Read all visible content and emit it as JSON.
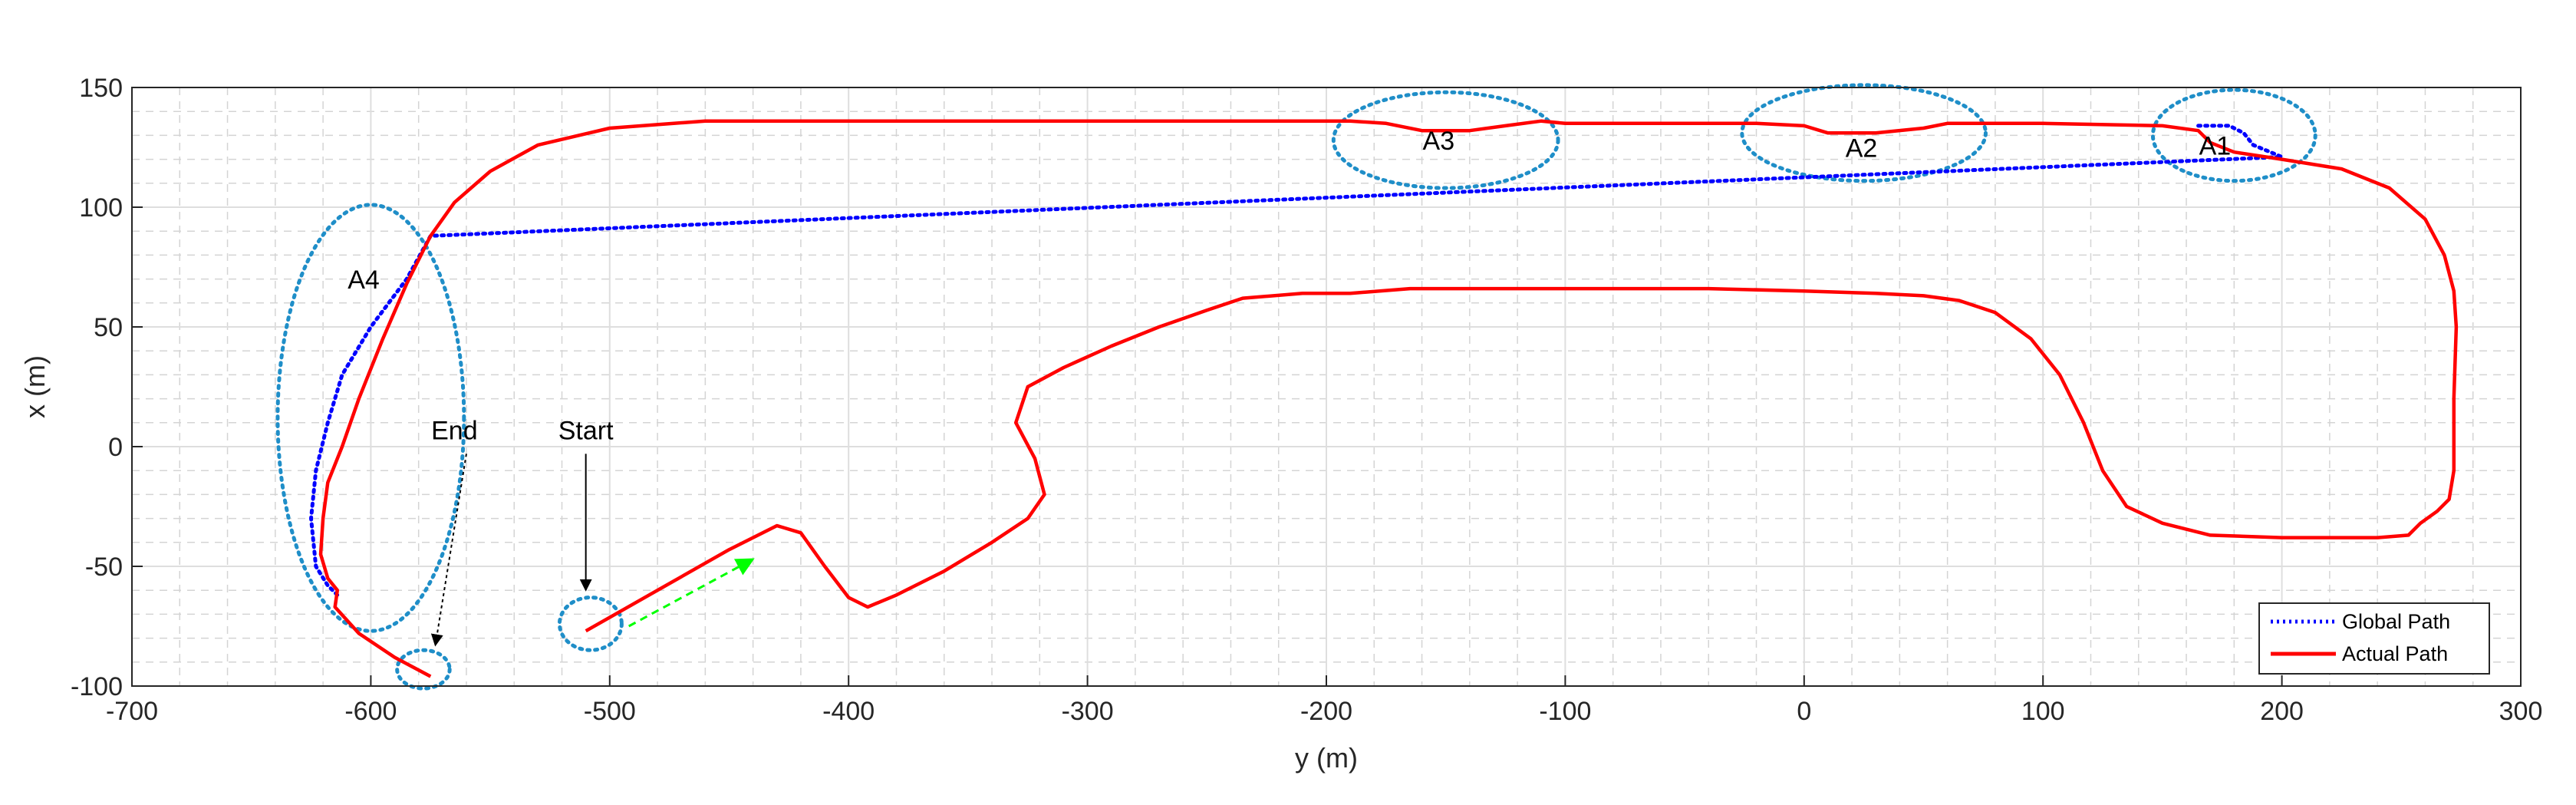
{
  "chart_data": {
    "type": "line",
    "title": "",
    "xlabel": "y (m)",
    "ylabel": "x (m)",
    "xlim": [
      -700,
      300
    ],
    "ylim": [
      -100,
      150
    ],
    "xticks": [
      -700,
      -600,
      -500,
      -400,
      -300,
      -200,
      -100,
      0,
      100,
      200,
      300
    ],
    "yticks": [
      -100,
      -50,
      0,
      50,
      100,
      150
    ],
    "xtick_labels": [
      "-700",
      "-600",
      "-500",
      "-400",
      "-300",
      "-200",
      "-100",
      "0",
      "100",
      "200",
      "300"
    ],
    "ytick_labels": [
      "-100",
      "-50",
      "0",
      "50",
      "100",
      "150"
    ],
    "grid": true,
    "minor_grid": true,
    "legend_position": "bottom-right",
    "series": [
      {
        "name": "Actual Path",
        "color": "#ff0000",
        "style": "solid",
        "points": [
          [
            -510,
            -77
          ],
          [
            -480,
            -60
          ],
          [
            -450,
            -43
          ],
          [
            -430,
            -33
          ],
          [
            -420,
            -36
          ],
          [
            -410,
            -50
          ],
          [
            -400,
            -63
          ],
          [
            -392,
            -67
          ],
          [
            -380,
            -62
          ],
          [
            -360,
            -52
          ],
          [
            -340,
            -40
          ],
          [
            -325,
            -30
          ],
          [
            -318,
            -20
          ],
          [
            -322,
            -5
          ],
          [
            -330,
            10
          ],
          [
            -325,
            25
          ],
          [
            -310,
            33
          ],
          [
            -290,
            42
          ],
          [
            -270,
            50
          ],
          [
            -250,
            57
          ],
          [
            -235,
            62
          ],
          [
            -210,
            64
          ],
          [
            -190,
            64
          ],
          [
            -165,
            66
          ],
          [
            -100,
            66
          ],
          [
            -40,
            66
          ],
          [
            0,
            65
          ],
          [
            30,
            64
          ],
          [
            50,
            63
          ],
          [
            65,
            61
          ],
          [
            80,
            56
          ],
          [
            95,
            45
          ],
          [
            107,
            30
          ],
          [
            117,
            10
          ],
          [
            125,
            -10
          ],
          [
            135,
            -25
          ],
          [
            150,
            -32
          ],
          [
            170,
            -37
          ],
          [
            200,
            -38
          ],
          [
            240,
            -38
          ],
          [
            253,
            -37
          ],
          [
            258,
            -32
          ],
          [
            265,
            -27
          ],
          [
            270,
            -22
          ],
          [
            272,
            -10
          ],
          [
            272,
            20
          ],
          [
            273,
            50
          ],
          [
            272,
            65
          ],
          [
            268,
            80
          ],
          [
            260,
            95
          ],
          [
            245,
            108
          ],
          [
            225,
            116
          ],
          [
            200,
            120
          ],
          [
            180,
            123
          ],
          [
            170,
            127
          ],
          [
            165,
            132
          ],
          [
            150,
            134
          ],
          [
            100,
            135
          ],
          [
            60,
            135
          ],
          [
            50,
            133
          ],
          [
            30,
            131
          ],
          [
            10,
            131
          ],
          [
            0,
            134
          ],
          [
            -20,
            135
          ],
          [
            -60,
            135
          ],
          [
            -100,
            135
          ],
          [
            -110,
            136
          ],
          [
            -125,
            134
          ],
          [
            -140,
            132
          ],
          [
            -160,
            132
          ],
          [
            -175,
            135
          ],
          [
            -190,
            136
          ],
          [
            -300,
            136
          ],
          [
            -400,
            136
          ],
          [
            -460,
            136
          ],
          [
            -500,
            133
          ],
          [
            -530,
            126
          ],
          [
            -550,
            115
          ],
          [
            -565,
            102
          ],
          [
            -575,
            88
          ],
          [
            -585,
            68
          ],
          [
            -595,
            45
          ],
          [
            -605,
            20
          ],
          [
            -612,
            0
          ],
          [
            -618,
            -15
          ],
          [
            -620,
            -30
          ],
          [
            -621,
            -45
          ],
          [
            -618,
            -55
          ],
          [
            -614,
            -60
          ],
          [
            -615,
            -67
          ],
          [
            -605,
            -78
          ],
          [
            -590,
            -88
          ],
          [
            -575,
            -96
          ]
        ]
      },
      {
        "name": "Global Path",
        "color": "#0000ff",
        "style": "dotted",
        "points": [
          [
            165,
            134
          ],
          [
            172,
            134
          ],
          [
            178,
            134
          ],
          [
            184,
            131
          ],
          [
            188,
            126
          ],
          [
            200,
            121
          ],
          [
            -575,
            88
          ],
          [
            -585,
            70
          ],
          [
            -600,
            50
          ],
          [
            -612,
            30
          ],
          [
            -618,
            10
          ],
          [
            -623,
            -10
          ],
          [
            -625,
            -30
          ],
          [
            -623,
            -50
          ],
          [
            -618,
            -58
          ],
          [
            -614,
            -62
          ]
        ]
      }
    ],
    "ellipses": [
      {
        "label": "A1",
        "cx": 180,
        "cy": 130,
        "rx": 34,
        "ry": 19,
        "color": "#1f8ec8"
      },
      {
        "label": "A2",
        "cx": 25,
        "cy": 131,
        "rx": 51,
        "ry": 20,
        "color": "#1f8ec8"
      },
      {
        "label": "A3",
        "cx": -150,
        "cy": 128,
        "rx": 47,
        "ry": 20,
        "color": "#1f8ec8"
      },
      {
        "label": "A4",
        "cx": -600,
        "cy": 12,
        "rx": 39,
        "ry": 89,
        "color": "#1f8ec8"
      },
      {
        "label": "",
        "cx": -508,
        "cy": -74,
        "rx": 13,
        "ry": 11,
        "color": "#1f8ec8"
      },
      {
        "label": "",
        "cx": -578,
        "cy": -93,
        "rx": 11,
        "ry": 8,
        "color": "#1f8ec8"
      }
    ],
    "annotations": [
      {
        "text": "A1",
        "x": 172,
        "y": 122
      },
      {
        "text": "A2",
        "x": 24,
        "y": 121
      },
      {
        "text": "A3",
        "x": -153,
        "y": 124
      },
      {
        "text": "A4",
        "x": -603,
        "y": 66
      },
      {
        "text": "End",
        "x": -565,
        "y": 3
      },
      {
        "text": "Start",
        "x": -510,
        "y": 3
      }
    ],
    "arrows": [
      {
        "name": "end-arrow",
        "from": [
          -560,
          -3
        ],
        "to": [
          -573,
          -83
        ],
        "color": "#000000",
        "dashed": true
      },
      {
        "name": "start-arrow",
        "from": [
          -510,
          -3
        ],
        "to": [
          -510,
          -60
        ],
        "color": "#000000",
        "dashed": false
      },
      {
        "name": "direction-arrow",
        "from": [
          -492,
          -75
        ],
        "to": [
          -440,
          -47
        ],
        "color": "#00ff00",
        "dashed": true
      }
    ]
  }
}
